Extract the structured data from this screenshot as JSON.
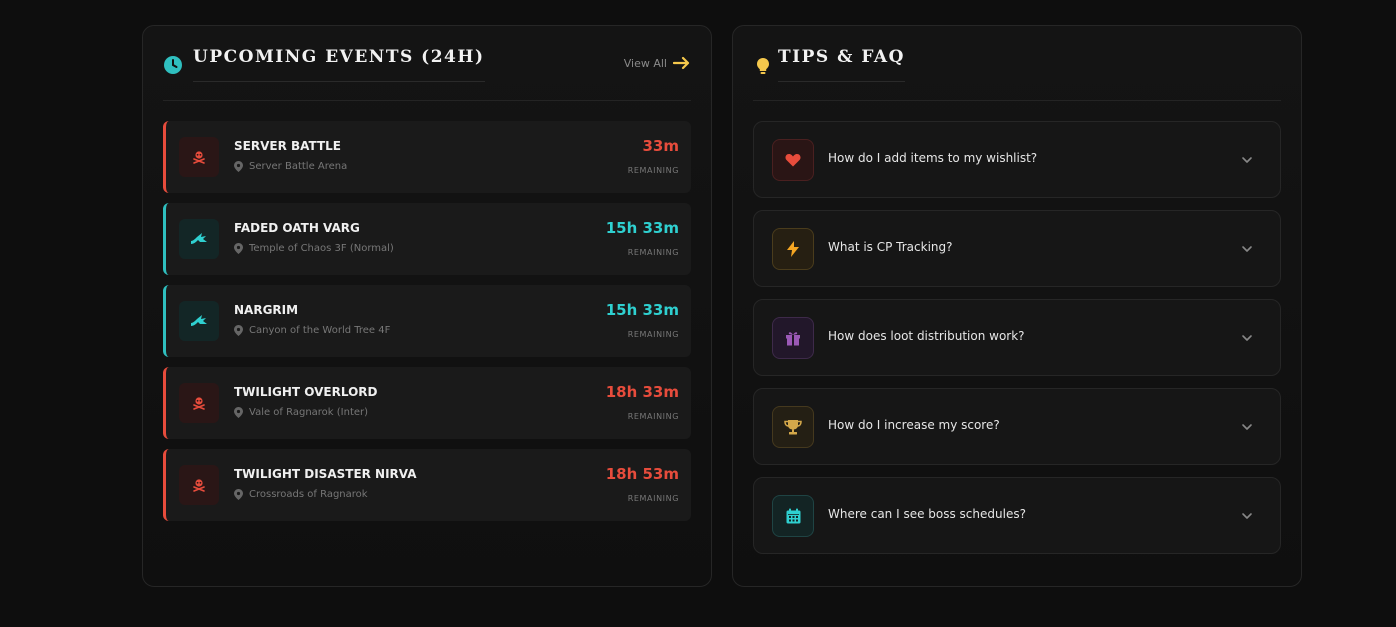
{
  "events_panel": {
    "title": "UPCOMING EVENTS (24H)",
    "view_all_label": "View All",
    "remaining_label": "REMAINING",
    "events": [
      {
        "name": "SERVER BATTLE",
        "location": "Server Battle Arena",
        "time": "33m",
        "type": "pvp"
      },
      {
        "name": "FADED OATH VARG",
        "location": "Temple of Chaos 3F (Normal)",
        "time": "15h 33m",
        "type": "boss"
      },
      {
        "name": "NARGRIM",
        "location": "Canyon of the World Tree 4F",
        "time": "15h 33m",
        "type": "boss"
      },
      {
        "name": "TWILIGHT OVERLORD",
        "location": "Vale of Ragnarok (Inter)",
        "time": "18h 33m",
        "type": "pvp"
      },
      {
        "name": "TWILIGHT DISASTER NIRVA",
        "location": "Crossroads of Ragnarok",
        "time": "18h 53m",
        "type": "pvp"
      }
    ]
  },
  "faq_panel": {
    "title": "TIPS & FAQ",
    "items": [
      {
        "question": "How do I add items to my wishlist?",
        "icon": "heart-icon"
      },
      {
        "question": "What is CP Tracking?",
        "icon": "bolt-icon"
      },
      {
        "question": "How does loot distribution work?",
        "icon": "gift-icon"
      },
      {
        "question": "How do I increase my score?",
        "icon": "trophy-icon"
      },
      {
        "question": "Where can I see boss schedules?",
        "icon": "calendar-icon"
      }
    ]
  },
  "colors": {
    "red": "#e74c3c",
    "teal": "#2fd0d0",
    "gold": "#f5c84c"
  }
}
